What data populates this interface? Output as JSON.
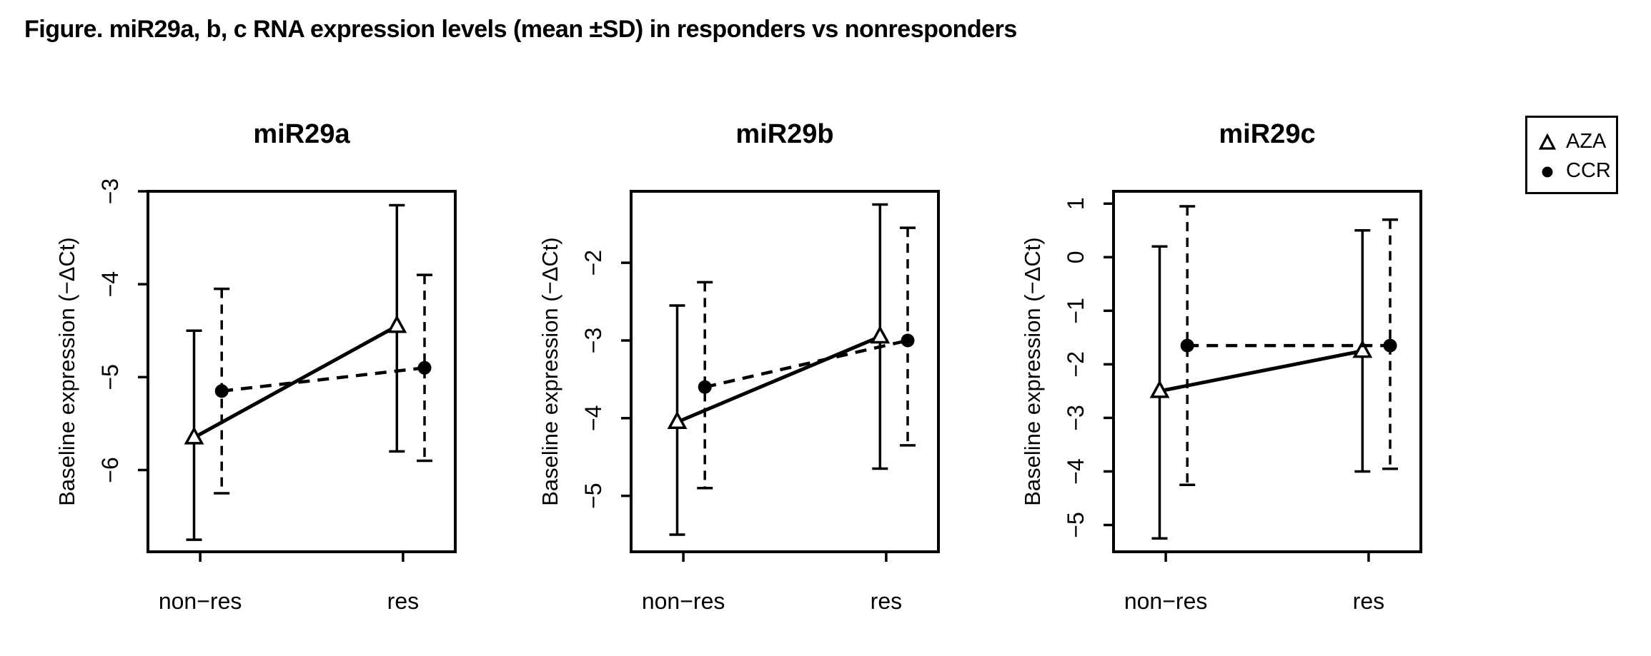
{
  "figure_title": "Figure. miR29a, b, c RNA expression levels (mean ±SD) in responders vs nonresponders",
  "colors": {
    "foreground": "#000000",
    "background": "#ffffff"
  },
  "legend": {
    "items": [
      {
        "symbol": "open-triangle-icon",
        "label": "AZA"
      },
      {
        "symbol": "filled-circle-icon",
        "label": "CCR"
      }
    ]
  },
  "chart_data": [
    {
      "type": "line",
      "title": "miR29a",
      "ylabel": "Baseline expression (−ΔCt)",
      "categories": [
        "non−res",
        "res"
      ],
      "yticks": [
        -3,
        -4,
        -5,
        -6
      ],
      "ylim": [
        -6.88,
        -3.0
      ],
      "grid": false,
      "error_bars": "mean ±SD",
      "series": [
        {
          "name": "AZA",
          "marker": "open-triangle",
          "line": "solid",
          "points": [
            {
              "category": "non−res",
              "mean": -5.65,
              "sd_low": -6.75,
              "sd_high": -4.5
            },
            {
              "category": "res",
              "mean": -4.45,
              "sd_low": -5.8,
              "sd_high": -3.15
            }
          ]
        },
        {
          "name": "CCR",
          "marker": "filled-circle",
          "line": "dashed",
          "points": [
            {
              "category": "non−res",
              "mean": -5.15,
              "sd_low": -6.25,
              "sd_high": -4.05
            },
            {
              "category": "res",
              "mean": -4.9,
              "sd_low": -5.9,
              "sd_high": -3.9
            }
          ]
        }
      ]
    },
    {
      "type": "line",
      "title": "miR29b",
      "ylabel": "Baseline expression (−ΔCt)",
      "categories": [
        "non−res",
        "res"
      ],
      "yticks": [
        -2,
        -3,
        -4,
        -5
      ],
      "ylim": [
        -5.72,
        -1.08
      ],
      "grid": false,
      "error_bars": "mean ±SD",
      "series": [
        {
          "name": "AZA",
          "marker": "open-triangle",
          "line": "solid",
          "points": [
            {
              "category": "non−res",
              "mean": -4.05,
              "sd_low": -5.5,
              "sd_high": -2.55
            },
            {
              "category": "res",
              "mean": -2.95,
              "sd_low": -4.65,
              "sd_high": -1.25
            }
          ]
        },
        {
          "name": "CCR",
          "marker": "filled-circle",
          "line": "dashed",
          "points": [
            {
              "category": "non−res",
              "mean": -3.6,
              "sd_low": -4.9,
              "sd_high": -2.25
            },
            {
              "category": "res",
              "mean": -3.0,
              "sd_low": -4.35,
              "sd_high": -1.55
            }
          ]
        }
      ]
    },
    {
      "type": "line",
      "title": "miR29c",
      "ylabel": "Baseline expression (−ΔCt)",
      "categories": [
        "non−res",
        "res"
      ],
      "yticks": [
        1,
        0,
        -1,
        -2,
        -3,
        -4,
        -5
      ],
      "ylim": [
        -5.5,
        1.23
      ],
      "grid": false,
      "error_bars": "mean ±SD",
      "series": [
        {
          "name": "AZA",
          "marker": "open-triangle",
          "line": "solid",
          "points": [
            {
              "category": "non−res",
              "mean": -2.5,
              "sd_low": -5.25,
              "sd_high": 0.2
            },
            {
              "category": "res",
              "mean": -1.75,
              "sd_low": -4.0,
              "sd_high": 0.5
            }
          ]
        },
        {
          "name": "CCR",
          "marker": "filled-circle",
          "line": "dashed",
          "points": [
            {
              "category": "non−res",
              "mean": -1.65,
              "sd_low": -4.25,
              "sd_high": 0.95
            },
            {
              "category": "res",
              "mean": -1.65,
              "sd_low": -3.95,
              "sd_high": 0.7
            }
          ]
        }
      ]
    }
  ]
}
